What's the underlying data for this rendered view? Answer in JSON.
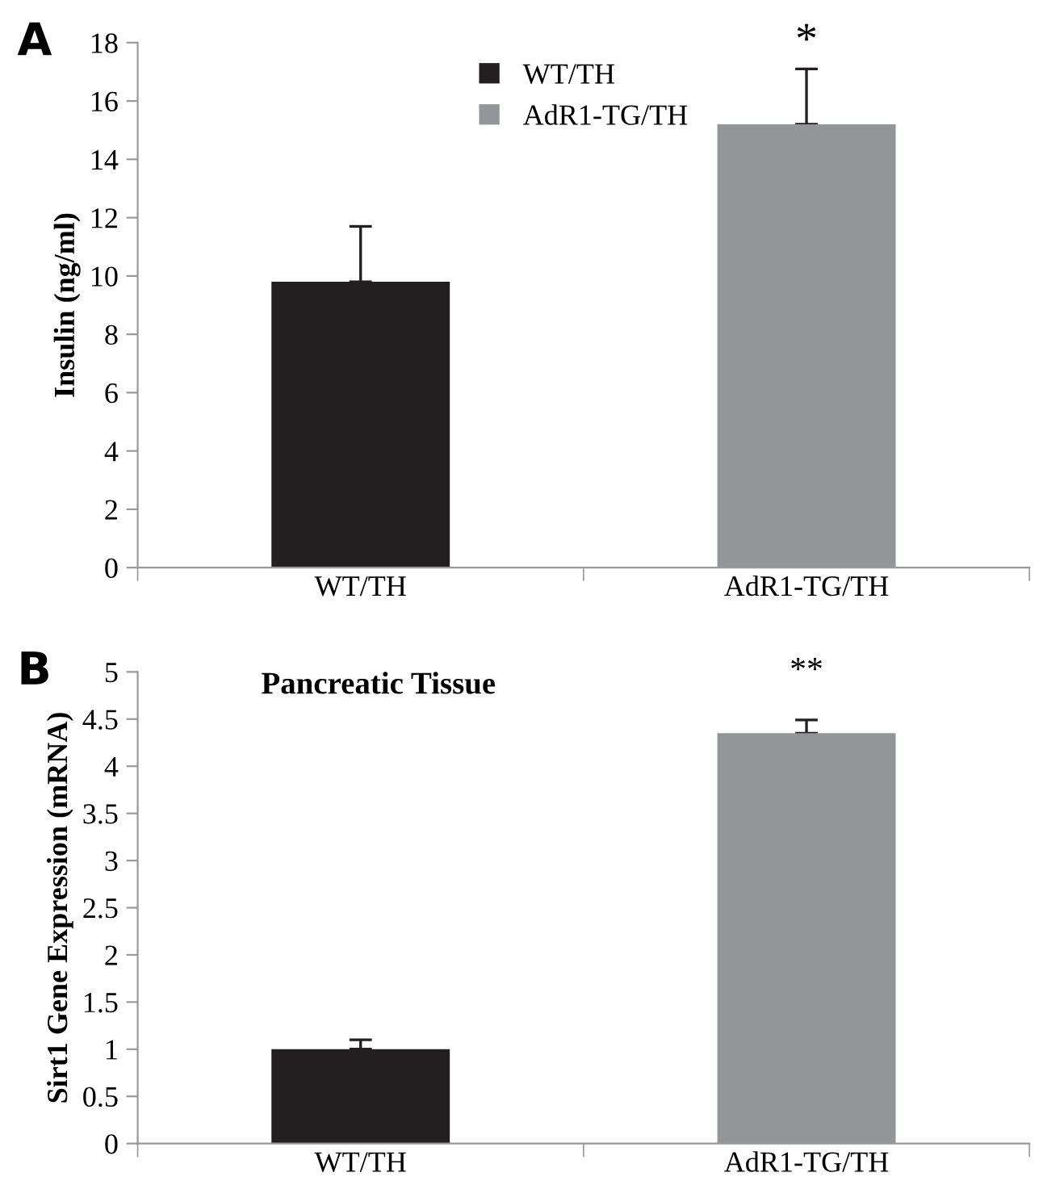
{
  "chart_data": [
    {
      "type": "bar",
      "ylabel": "Insulin (ng/ml)",
      "categories": [
        "WT/TH",
        "AdR1-TG/TH"
      ],
      "series": [
        {
          "name": "WT/TH",
          "color": "#231f20",
          "values": [
            9.8,
            null
          ],
          "errors": [
            [
              9.8,
              11.7
            ],
            null
          ]
        },
        {
          "name": "AdR1-TG/TH",
          "color": "#939598",
          "values": [
            null,
            15.2
          ],
          "errors": [
            null,
            [
              15.2,
              17.1
            ]
          ]
        }
      ],
      "ylim": [
        0,
        18
      ],
      "yticks": [
        0,
        2,
        4,
        6,
        8,
        10,
        12,
        14,
        16,
        18
      ],
      "grid": false,
      "legend": "top",
      "annotations": [
        "A",
        "*"
      ]
    },
    {
      "type": "bar",
      "title": "Pancreatic Tissue",
      "ylabel": "Sirt1 Gene Expression (mRNA)",
      "categories": [
        "WT/TH",
        "AdR1-TG/TH"
      ],
      "values": [
        1.0,
        4.35
      ],
      "colors": [
        "#231f20",
        "#939598"
      ],
      "errors": [
        [
          1.0,
          1.1
        ],
        [
          4.35,
          4.49
        ]
      ],
      "ylim": [
        0,
        5
      ],
      "yticks": [
        0,
        {
          "value": 0.5,
          "label": "0.5"
        },
        1,
        {
          "value": 1.5,
          "label": "1.5"
        },
        2,
        {
          "value": 2.5,
          "label": "2.5"
        },
        3,
        {
          "value": 3.5,
          "label": "3.5"
        },
        4,
        {
          "value": 4.5,
          "label": "4.5"
        },
        5
      ],
      "grid": false,
      "annotations": [
        "B",
        "**"
      ]
    }
  ]
}
